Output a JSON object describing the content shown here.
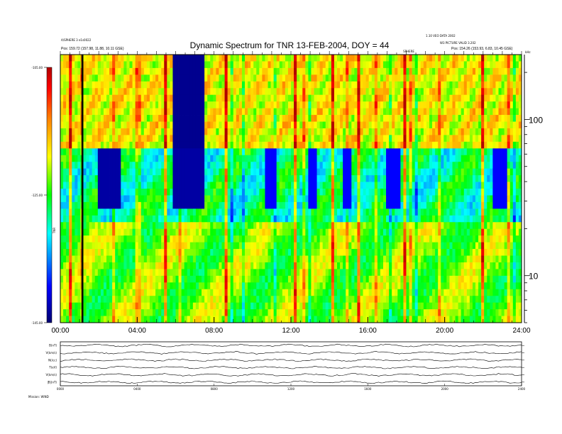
{
  "chart_data": {
    "type": "heatmap",
    "title": "Dynamic Spectrum for TNR 13-FEB-2004, DOY = 44",
    "xlabel": "",
    "ylabel": "",
    "x_ticks": [
      "00:00",
      "04:00",
      "08:00",
      "12:00",
      "16:00",
      "20:00",
      "24:00"
    ],
    "x_range": [
      0,
      24
    ],
    "y_scale": "log",
    "y_range": [
      5,
      260
    ],
    "y_ticks": [
      "100",
      "10"
    ],
    "y_unit_label": "kHz",
    "colorbar": {
      "ticks": [
        "-105.00",
        "-125.00",
        "-145.00"
      ],
      "range": [
        -145,
        -105
      ],
      "label": "TNR",
      "colors": [
        "#000070",
        "#0000ff",
        "#00ffff",
        "#00ff00",
        "#ffff00",
        "#ff8000",
        "#ff0000",
        "#b00000"
      ]
    },
    "header_left": [
      "A/SPHERE 3 e1s0022",
      "Pos: 159.72 (157.98, 11.88, 10.11 GSE)"
    ],
    "header_right": [
      "1.10 VEO DATA 2002",
      "W3 PICTURE VALID 3.202",
      "Pos: 154.26 (153.93, 6.83, 10.45 GSE)"
    ],
    "header_mid_label": "SPHERE",
    "annotations": [
      "kHz"
    ],
    "panels": [
      {
        "label": "B(nT)"
      },
      {
        "label": "V(km/s)"
      },
      {
        "label": "N(/cc)"
      },
      {
        "label": "T(eV)"
      },
      {
        "label": "V(km/s)"
      },
      {
        "label": "|B|(nT)"
      }
    ],
    "panel_x_ticks": [
      "0000",
      "0400",
      "0800",
      "1200",
      "1600",
      "2000",
      "2400"
    ],
    "footer_label": "Mission: WIND",
    "dark_bands": [
      {
        "start_hr": 1.1,
        "end_hr": 1.2
      }
    ]
  }
}
